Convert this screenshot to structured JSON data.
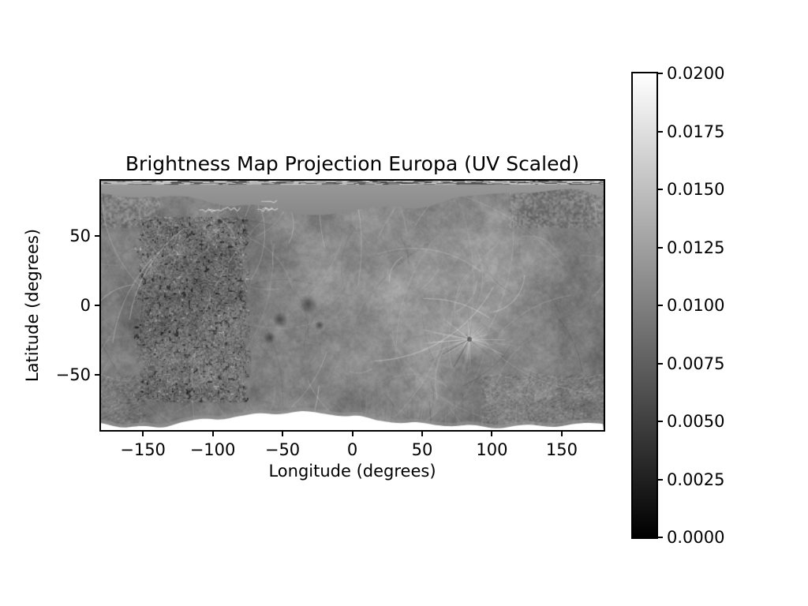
{
  "figure": {
    "background": "#ffffff",
    "text_color": "#000000",
    "frame_color": "#000000"
  },
  "chart_data": {
    "type": "heatmap",
    "title": "Brightness Map Projection Europa (UV Scaled)",
    "xlabel": "Longitude (degrees)",
    "ylabel": "Latitude (degrees)",
    "xlim": [
      -180,
      180
    ],
    "ylim": [
      -90,
      90
    ],
    "x_ticks": {
      "values": [
        -150,
        -100,
        -50,
        0,
        50,
        100,
        150
      ],
      "labels": [
        "−150",
        "−100",
        "−50",
        "0",
        "50",
        "100",
        "150"
      ]
    },
    "y_ticks": {
      "values": [
        50,
        0,
        -50
      ],
      "labels": [
        "50",
        "0",
        "−50"
      ]
    },
    "colorbar": {
      "cmap": "gray",
      "min_color": "#000000",
      "max_color": "#ffffff",
      "vmin": 0.0,
      "vmax": 0.02,
      "tick_values": [
        0.02,
        0.0175,
        0.015,
        0.0125,
        0.01,
        0.0075,
        0.005,
        0.0025,
        0.0
      ],
      "tick_labels": [
        "0.0200",
        "0.0175",
        "0.0150",
        "0.0125",
        "0.0100",
        "0.0075",
        "0.0050",
        "0.0025",
        "0.0000"
      ]
    },
    "grid": {
      "lon": [
        -170,
        -150,
        -130,
        -110,
        -90,
        -70,
        -50,
        -30,
        -10,
        10,
        30,
        50,
        70,
        90,
        110,
        130,
        150,
        170
      ],
      "lat": [
        80,
        60,
        40,
        20,
        0,
        -20,
        -40,
        -60,
        -80
      ],
      "values": [
        [
          0.0104,
          0.0104,
          0.0104,
          0.0104,
          0.0104,
          0.0104,
          0.0104,
          0.0104,
          0.0104,
          0.0104,
          0.0104,
          0.0104,
          0.0104,
          0.0104,
          0.0104,
          0.0104,
          0.0104,
          0.0104
        ],
        [
          0.0098,
          0.0095,
          0.0093,
          0.0093,
          0.0095,
          0.0098,
          0.0102,
          0.0104,
          0.0106,
          0.0108,
          0.0108,
          0.0107,
          0.0106,
          0.0108,
          0.0106,
          0.0103,
          0.01,
          0.0098
        ],
        [
          0.01,
          0.0093,
          0.009,
          0.0091,
          0.0093,
          0.0097,
          0.0102,
          0.0108,
          0.0113,
          0.0116,
          0.0113,
          0.011,
          0.011,
          0.0113,
          0.011,
          0.0106,
          0.0102,
          0.01
        ],
        [
          0.0101,
          0.0094,
          0.0091,
          0.0092,
          0.0094,
          0.0096,
          0.01,
          0.011,
          0.0118,
          0.012,
          0.0118,
          0.0113,
          0.0111,
          0.0114,
          0.0111,
          0.0106,
          0.0103,
          0.0101
        ],
        [
          0.01,
          0.0093,
          0.0091,
          0.0092,
          0.0093,
          0.0094,
          0.0096,
          0.0106,
          0.0116,
          0.012,
          0.012,
          0.0116,
          0.0113,
          0.0116,
          0.011,
          0.0106,
          0.0102,
          0.01
        ],
        [
          0.0098,
          0.0092,
          0.009,
          0.0091,
          0.0093,
          0.0094,
          0.0096,
          0.0103,
          0.011,
          0.0116,
          0.012,
          0.0123,
          0.0118,
          0.0113,
          0.0108,
          0.0104,
          0.0101,
          0.0098
        ],
        [
          0.0096,
          0.0092,
          0.0091,
          0.0092,
          0.0094,
          0.0095,
          0.0098,
          0.0103,
          0.0108,
          0.0111,
          0.0114,
          0.0116,
          0.0112,
          0.0108,
          0.0105,
          0.0102,
          0.0099,
          0.0096
        ],
        [
          0.0094,
          0.0092,
          0.0092,
          0.0094,
          0.0096,
          0.0097,
          0.0099,
          0.0102,
          0.0104,
          0.0106,
          0.0106,
          0.0105,
          0.0104,
          0.0103,
          0.0102,
          0.01,
          0.0097,
          0.0094
        ],
        [
          0.0096,
          0.0098,
          0.0102,
          0.0108,
          0.0112,
          0.011,
          0.0106,
          0.0104,
          0.0103,
          0.0103,
          0.0102,
          0.0101,
          0.01,
          0.01,
          0.0099,
          0.0098,
          0.0097,
          0.0096
        ]
      ]
    },
    "north_smooth_band": {
      "lon": [
        -180,
        -120,
        -80,
        -40,
        0,
        40,
        80,
        120,
        160,
        180
      ],
      "boundary_lat": [
        82,
        78,
        73,
        65,
        67,
        71,
        78,
        84,
        83,
        79
      ]
    },
    "south_no_data": {
      "lon": [
        -180,
        -160,
        -140,
        -120,
        -100,
        -80,
        -60,
        -40,
        -20,
        0,
        20,
        40,
        60,
        80,
        100,
        120,
        140,
        160,
        180
      ],
      "boundary_lat": [
        -85,
        -88,
        -88,
        -84,
        -82,
        -80,
        -78,
        -77,
        -78,
        -80,
        -83,
        -85,
        -86,
        -87,
        -88,
        -87,
        -87,
        -86,
        -85
      ]
    }
  }
}
